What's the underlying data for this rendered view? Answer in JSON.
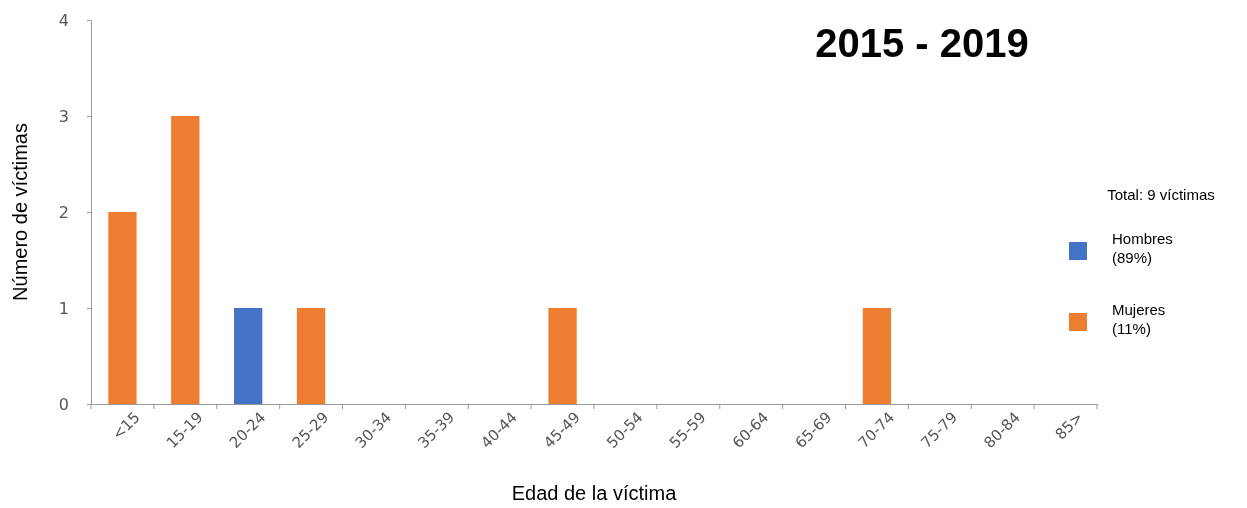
{
  "chart_data": {
    "type": "bar",
    "title": "2015 - 2019",
    "xlabel": "Edad de la víctima",
    "ylabel": "Número de víctimas",
    "legend_title": "Total: 9 víctimas",
    "legend": "right",
    "grid": false,
    "stacked": true,
    "categories": [
      "<15",
      "15-19",
      "20-24",
      "25-29",
      "30-34",
      "35-39",
      "40-44",
      "45-49",
      "50-54",
      "55-59",
      "60-64",
      "65-69",
      "70-74",
      "75-79",
      "80-84",
      "85>"
    ],
    "ylim": [
      0,
      4
    ],
    "yticks": [
      0,
      1,
      2,
      3,
      4
    ],
    "series": [
      {
        "name": "Hombres (89%)",
        "color": "#4472c4",
        "values": [
          0,
          0,
          1,
          0,
          0,
          0,
          0,
          0,
          0,
          0,
          0,
          0,
          0,
          0,
          0,
          0
        ]
      },
      {
        "name": "Mujeres (11%)",
        "color": "#ed7d31",
        "values": [
          2,
          3,
          0,
          1,
          0,
          0,
          0,
          1,
          0,
          0,
          0,
          0,
          1,
          0,
          0,
          0
        ]
      }
    ]
  }
}
